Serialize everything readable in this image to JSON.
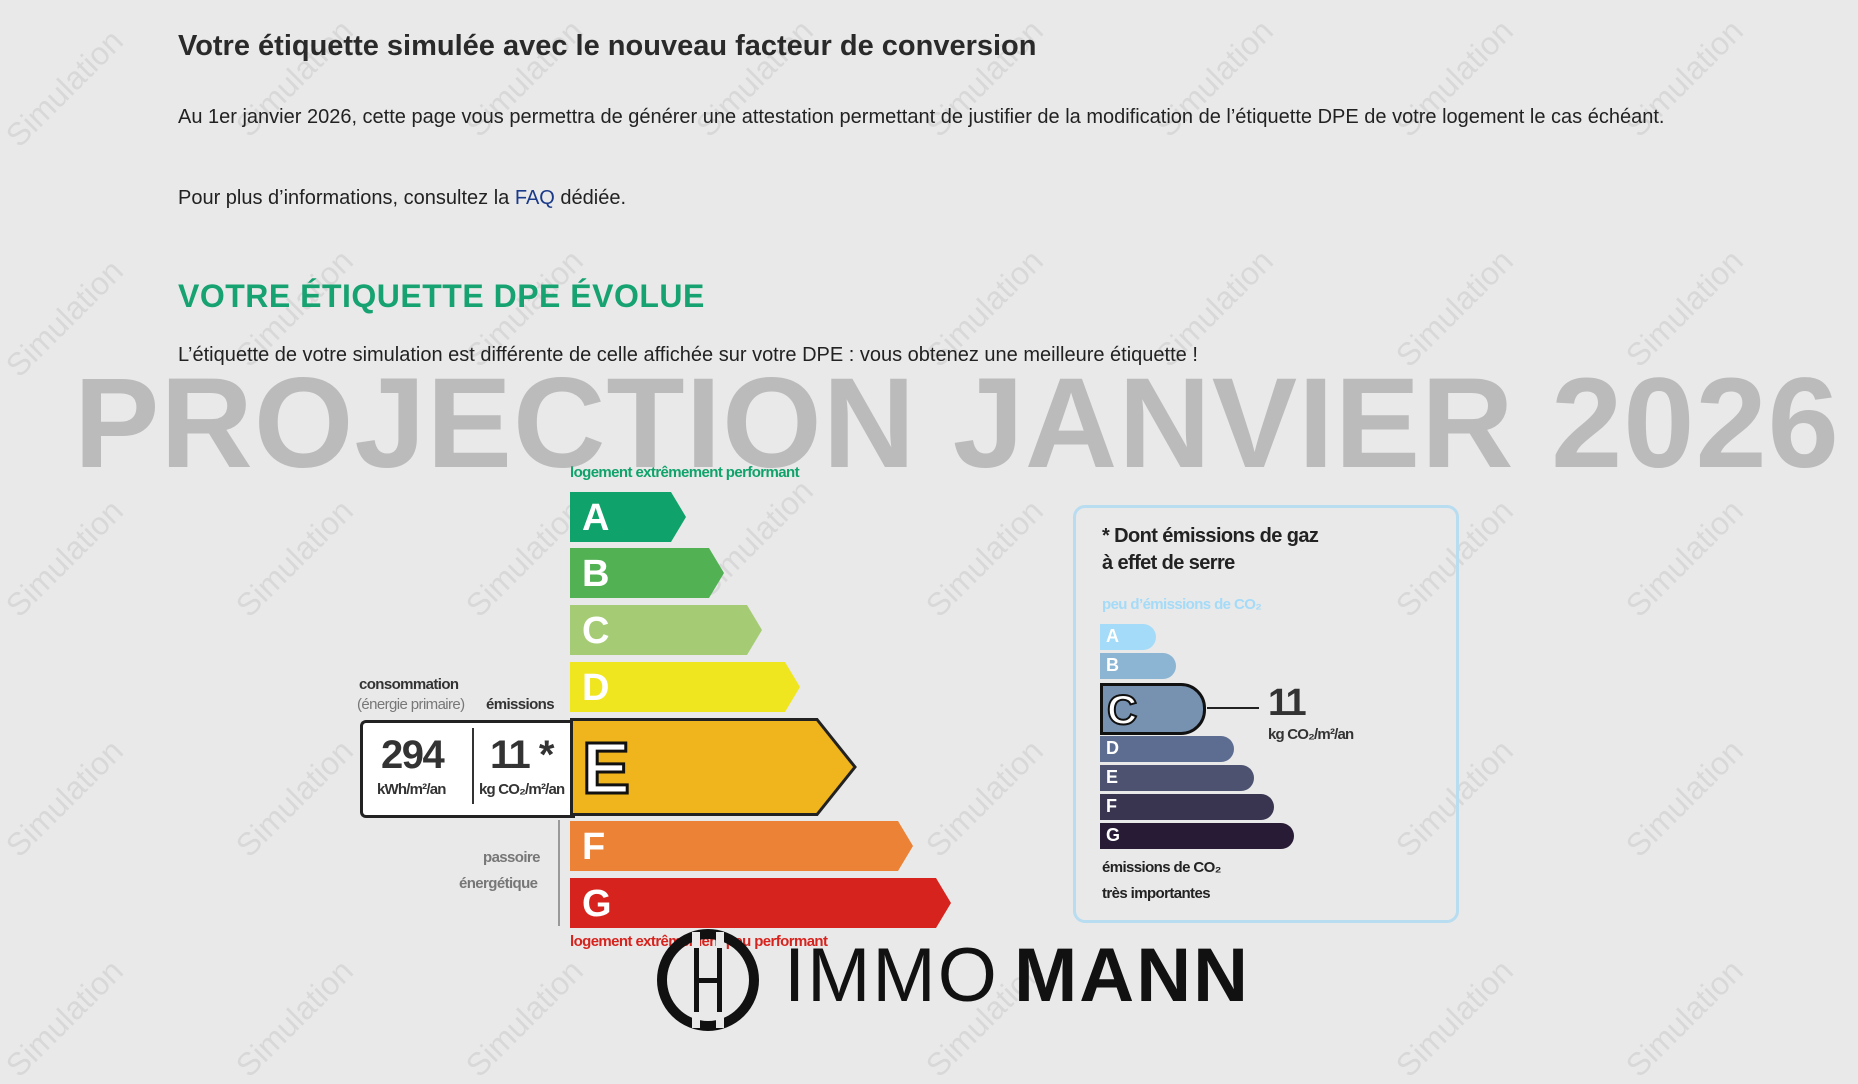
{
  "header": {
    "title": "Votre étiquette simulée avec le nouveau facteur de conversion",
    "intro": "Au 1er janvier 2026, cette page vous permettra de générer une attestation permettant de justifier de la modification de l’étiquette DPE de votre logement le cas échéant.",
    "more_prefix": "Pour plus d’informations, consultez la ",
    "faq_link": "FAQ",
    "more_suffix": " dédiée."
  },
  "section": {
    "title": "VOTRE ÉTIQUETTE DPE ÉVOLUE",
    "message": "L’étiquette de votre simulation est différente de celle affichée sur votre DPE : vous obtenez une meilleure étiquette !"
  },
  "overlay": {
    "projection": "PROJECTION JANVIER 2026",
    "watermark": "Simulation"
  },
  "energy_label": {
    "top_caption": "logement extrêmement performant",
    "bottom_caption": "logement extrêmement peu performant",
    "consumption_label": "consommation",
    "consumption_sub": "(énergie primaire)",
    "emissions_label": "émissions",
    "consumption_value": "294",
    "consumption_unit": "kWh/m²/an",
    "emissions_value": "11 *",
    "emissions_unit": "kg CO₂/m²/an",
    "passoire_1": "passoire",
    "passoire_2": "énergétique",
    "current_class": "E",
    "classes": [
      {
        "letter": "A",
        "color": "#0fa36b"
      },
      {
        "letter": "B",
        "color": "#52b153"
      },
      {
        "letter": "C",
        "color": "#a5cc74"
      },
      {
        "letter": "D",
        "color": "#f0e620"
      },
      {
        "letter": "E",
        "color": "#f0b41c"
      },
      {
        "letter": "F",
        "color": "#eb8235"
      },
      {
        "letter": "G",
        "color": "#d6231e"
      }
    ]
  },
  "ghg_panel": {
    "title_1": "* Dont émissions de gaz",
    "title_2": "à effet de serre",
    "top_caption": "peu d’émissions de CO₂",
    "bottom_caption_1": "émissions de CO₂",
    "bottom_caption_2": "très importantes",
    "current_class": "C",
    "value": "11",
    "unit": "kg CO₂/m²/an",
    "classes": [
      {
        "letter": "A",
        "color": "#a4dbf8"
      },
      {
        "letter": "B",
        "color": "#8cb4d3"
      },
      {
        "letter": "C",
        "color": "#7792b1"
      },
      {
        "letter": "D",
        "color": "#5d6d91"
      },
      {
        "letter": "E",
        "color": "#4d5271"
      },
      {
        "letter": "F",
        "color": "#393551"
      },
      {
        "letter": "G",
        "color": "#281b35"
      }
    ]
  },
  "logo": {
    "monogram": "H",
    "brand_light": "IMMO",
    "brand_bold": "MANN"
  }
}
